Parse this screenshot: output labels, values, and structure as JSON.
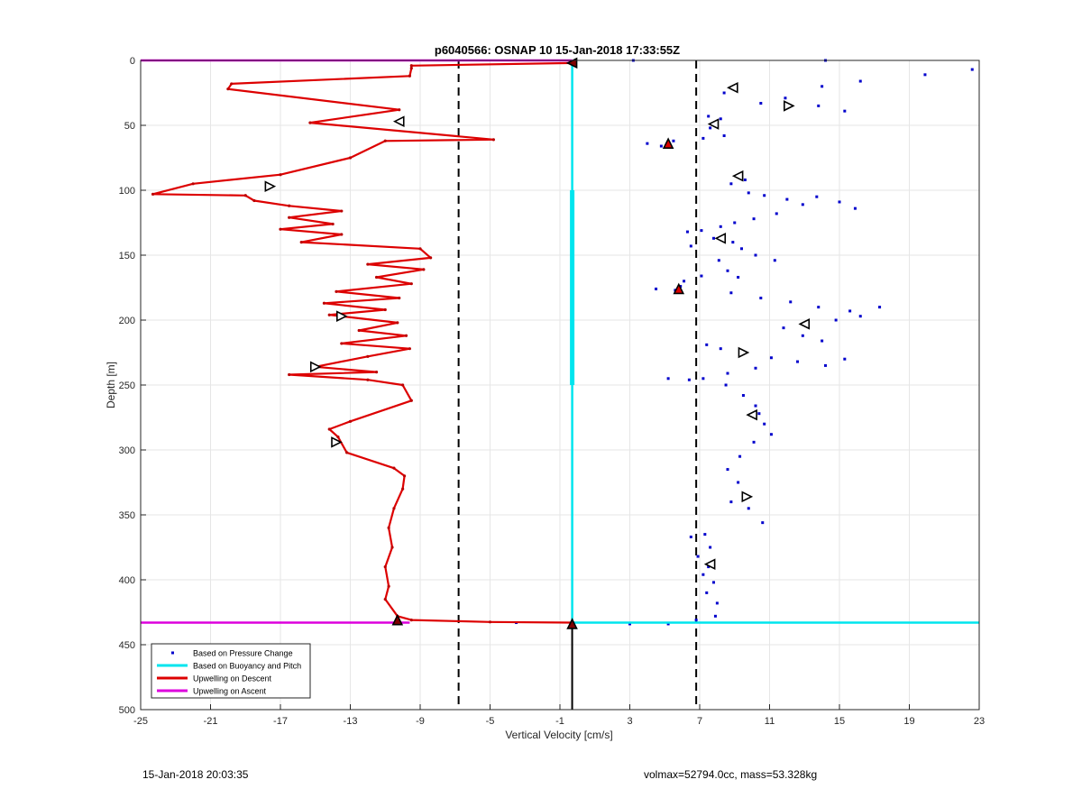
{
  "chart_data": {
    "type": "scatter",
    "title": "p6040566: OSNAP 10 15-Jan-2018 17:33:55Z",
    "xlabel": "Vertical Velocity [cm/s]",
    "ylabel": "Depth [m]",
    "xlim": [
      -25,
      23
    ],
    "ylim": [
      0,
      500
    ],
    "y_reversed": true,
    "grid": true,
    "xticks": [
      -25,
      -21,
      -17,
      -13,
      -9,
      -5,
      -1,
      3,
      7,
      11,
      15,
      19,
      23
    ],
    "yticks": [
      0,
      50,
      100,
      150,
      200,
      250,
      300,
      350,
      400,
      450,
      500
    ],
    "legend_position": "bottom-left",
    "legend": [
      {
        "label": "Based on Pressure Change",
        "color": "#0000cc",
        "style": "dots"
      },
      {
        "label": "Based on Buoyancy and Pitch",
        "color": "#00e5ee",
        "style": "line"
      },
      {
        "label": "Upwelling on Descent",
        "color": "#dd0000",
        "style": "line"
      },
      {
        "label": "Upwelling on Ascent",
        "color": "#dd00dd",
        "style": "line"
      }
    ],
    "vlines": [
      {
        "x": -6.8,
        "style": "dashed",
        "color": "#000000"
      },
      {
        "x": 6.8,
        "style": "dashed",
        "color": "#000000"
      }
    ],
    "series": [
      {
        "name": "Upwelling on Descent",
        "style": "line",
        "color": "#dd0000",
        "points": [
          [
            -0.3,
            2
          ],
          [
            -9.5,
            4
          ],
          [
            -9.5,
            6
          ],
          [
            -9.6,
            12
          ],
          [
            -19.8,
            18
          ],
          [
            -20,
            22
          ],
          [
            -10.2,
            38
          ],
          [
            -15.3,
            48
          ],
          [
            -4.8,
            61
          ],
          [
            -11,
            62
          ],
          [
            -13,
            75
          ],
          [
            -17,
            88
          ],
          [
            -22,
            95
          ],
          [
            -24.3,
            103
          ],
          [
            -19,
            104
          ],
          [
            -18.5,
            108
          ],
          [
            -16.5,
            112
          ],
          [
            -13.5,
            116
          ],
          [
            -16.5,
            121
          ],
          [
            -14,
            126
          ],
          [
            -17,
            130
          ],
          [
            -13.5,
            134
          ],
          [
            -15.8,
            140
          ],
          [
            -9,
            145
          ],
          [
            -8.4,
            152
          ],
          [
            -12,
            157
          ],
          [
            -8.8,
            161
          ],
          [
            -11.5,
            167
          ],
          [
            -9.5,
            172
          ],
          [
            -13.8,
            178
          ],
          [
            -10.2,
            183
          ],
          [
            -14.5,
            187
          ],
          [
            -11,
            192
          ],
          [
            -14.2,
            196
          ],
          [
            -10.3,
            202
          ],
          [
            -12.5,
            208
          ],
          [
            -9.8,
            212
          ],
          [
            -13.5,
            218
          ],
          [
            -9.6,
            222
          ],
          [
            -12,
            228
          ],
          [
            -15,
            236
          ],
          [
            -11.5,
            240
          ],
          [
            -16.5,
            242
          ],
          [
            -12,
            246
          ],
          [
            -10,
            250
          ],
          [
            -9.5,
            262
          ],
          [
            -13,
            278
          ],
          [
            -14.2,
            284
          ],
          [
            -13.7,
            290
          ],
          [
            -13.2,
            302
          ],
          [
            -10.5,
            314
          ],
          [
            -9.9,
            320
          ],
          [
            -10,
            330
          ],
          [
            -10.5,
            345
          ],
          [
            -10.8,
            360
          ],
          [
            -10.6,
            375
          ],
          [
            -11,
            390
          ],
          [
            -10.8,
            405
          ],
          [
            -11,
            415
          ],
          [
            -10.3,
            428
          ],
          [
            -9.5,
            431
          ],
          [
            -5,
            432.5
          ],
          [
            -0.3,
            433
          ]
        ]
      },
      {
        "name": "Upwelling on Ascent",
        "style": "line",
        "color": "#dd00dd",
        "points": [
          [
            -25,
            0
          ],
          [
            -0.3,
            0
          ]
        ]
      },
      {
        "name": "Upwelling on Ascent bottom",
        "style": "line",
        "color": "#dd00dd",
        "points": [
          [
            -25,
            433
          ],
          [
            -9.6,
            433
          ]
        ]
      },
      {
        "name": "Based on Buoyancy and Pitch",
        "style": "line",
        "color": "#00e5ee",
        "points": [
          [
            -0.3,
            2
          ],
          [
            -0.3,
            433
          ],
          [
            23,
            433
          ]
        ]
      },
      {
        "name": "Based on Buoyancy and Pitch segment",
        "style": "thickline",
        "color": "#00e5ee",
        "points": [
          [
            -0.3,
            100
          ],
          [
            -0.3,
            250
          ]
        ]
      },
      {
        "name": "Based on Pressure Change",
        "style": "dots",
        "color": "#0000cc",
        "points": [
          [
            3.2,
            0
          ],
          [
            14.2,
            0
          ],
          [
            22.6,
            7
          ],
          [
            19.9,
            11
          ],
          [
            16.2,
            16
          ],
          [
            14,
            20
          ],
          [
            8.4,
            25
          ],
          [
            10.5,
            33
          ],
          [
            11.9,
            29
          ],
          [
            13.8,
            35
          ],
          [
            15.3,
            39
          ],
          [
            7.5,
            43
          ],
          [
            8.2,
            45
          ],
          [
            7.6,
            52
          ],
          [
            8.4,
            58
          ],
          [
            7.2,
            60
          ],
          [
            4,
            64
          ],
          [
            4.8,
            66
          ],
          [
            5.5,
            62
          ],
          [
            9.6,
            92
          ],
          [
            8.8,
            95
          ],
          [
            9.8,
            102
          ],
          [
            10.7,
            104
          ],
          [
            12,
            107
          ],
          [
            12.9,
            111
          ],
          [
            13.7,
            105
          ],
          [
            15,
            109
          ],
          [
            15.9,
            114
          ],
          [
            11.4,
            118
          ],
          [
            10.1,
            122
          ],
          [
            9,
            125
          ],
          [
            8.2,
            128
          ],
          [
            7.1,
            131
          ],
          [
            6.3,
            132
          ],
          [
            7.8,
            137
          ],
          [
            8.9,
            140
          ],
          [
            9.4,
            145
          ],
          [
            10.2,
            150
          ],
          [
            11.3,
            154
          ],
          [
            6.5,
            143
          ],
          [
            8.1,
            154
          ],
          [
            8.6,
            162
          ],
          [
            9.2,
            167
          ],
          [
            7.1,
            166
          ],
          [
            6.1,
            170
          ],
          [
            5.9,
            174
          ],
          [
            5.6,
            177
          ],
          [
            4.5,
            176
          ],
          [
            8.8,
            179
          ],
          [
            10.5,
            183
          ],
          [
            12.2,
            186
          ],
          [
            13.8,
            190
          ],
          [
            15.6,
            193
          ],
          [
            17.3,
            190
          ],
          [
            16.2,
            197
          ],
          [
            14.8,
            200
          ],
          [
            13.2,
            203
          ],
          [
            11.8,
            206
          ],
          [
            12.9,
            212
          ],
          [
            14,
            216
          ],
          [
            7.4,
            219
          ],
          [
            8.2,
            222
          ],
          [
            9.4,
            225
          ],
          [
            11.1,
            229
          ],
          [
            12.6,
            232
          ],
          [
            14.2,
            235
          ],
          [
            15.3,
            230
          ],
          [
            10.2,
            237
          ],
          [
            8.6,
            241
          ],
          [
            7.2,
            245
          ],
          [
            5.2,
            245
          ],
          [
            6.4,
            246
          ],
          [
            8.5,
            250
          ],
          [
            9.5,
            258
          ],
          [
            10.2,
            266
          ],
          [
            10.4,
            272
          ],
          [
            10.7,
            280
          ],
          [
            11.1,
            288
          ],
          [
            10.1,
            294
          ],
          [
            9.3,
            305
          ],
          [
            8.6,
            315
          ],
          [
            9.2,
            325
          ],
          [
            8.8,
            340
          ],
          [
            9.8,
            345
          ],
          [
            10.6,
            356
          ],
          [
            7.3,
            365
          ],
          [
            6.5,
            367
          ],
          [
            7.6,
            375
          ],
          [
            6.9,
            382
          ],
          [
            7.5,
            390
          ],
          [
            7.2,
            396
          ],
          [
            7.8,
            402
          ],
          [
            7.4,
            410
          ],
          [
            8,
            418
          ],
          [
            7.9,
            428
          ],
          [
            3,
            434
          ],
          [
            5.2,
            434
          ],
          [
            6.8,
            431
          ],
          [
            -3.5,
            433
          ]
        ]
      }
    ],
    "markers": [
      {
        "x": -0.3,
        "y": 2,
        "shape": "triangle-left",
        "fill": "#800000"
      },
      {
        "x": 8.9,
        "y": 21,
        "shape": "triangle-left",
        "fill": "#ffffff"
      },
      {
        "x": 12.1,
        "y": 35,
        "shape": "triangle-right",
        "fill": "#ffffff"
      },
      {
        "x": -10.2,
        "y": 47,
        "shape": "triangle-left",
        "fill": "#ffffff"
      },
      {
        "x": 7.8,
        "y": 49,
        "shape": "triangle-left",
        "fill": "#ffffff"
      },
      {
        "x": 5.2,
        "y": 64,
        "shape": "triangle-up",
        "fill": "#dd0000"
      },
      {
        "x": 9.2,
        "y": 89,
        "shape": "triangle-left",
        "fill": "#ffffff"
      },
      {
        "x": -17.6,
        "y": 97,
        "shape": "triangle-right",
        "fill": "#ffffff"
      },
      {
        "x": 8.2,
        "y": 137,
        "shape": "triangle-left",
        "fill": "#ffffff"
      },
      {
        "x": 5.8,
        "y": 176,
        "shape": "triangle-up",
        "fill": "#dd0000"
      },
      {
        "x": -13.5,
        "y": 197,
        "shape": "triangle-right",
        "fill": "#ffffff"
      },
      {
        "x": 13,
        "y": 203,
        "shape": "triangle-left",
        "fill": "#ffffff"
      },
      {
        "x": 9.5,
        "y": 225,
        "shape": "triangle-right",
        "fill": "#ffffff"
      },
      {
        "x": -15,
        "y": 236,
        "shape": "triangle-right",
        "fill": "#ffffff"
      },
      {
        "x": 10,
        "y": 273,
        "shape": "triangle-left",
        "fill": "#ffffff"
      },
      {
        "x": -13.8,
        "y": 294,
        "shape": "triangle-right",
        "fill": "#ffffff"
      },
      {
        "x": 9.7,
        "y": 336,
        "shape": "triangle-right",
        "fill": "#ffffff"
      },
      {
        "x": 7.6,
        "y": 388,
        "shape": "triangle-left",
        "fill": "#ffffff"
      },
      {
        "x": -10.3,
        "y": 431,
        "shape": "triangle-up",
        "fill": "#800000"
      },
      {
        "x": -0.3,
        "y": 434,
        "shape": "triangle-up",
        "fill": "#800000"
      }
    ],
    "bottom_vline": {
      "x": -0.3,
      "from": 434,
      "to": 500,
      "color": "#000000"
    }
  },
  "footer": {
    "timestamp": "15-Jan-2018 20:03:35",
    "info": "volmax=52794.0cc, mass=53.328kg"
  }
}
